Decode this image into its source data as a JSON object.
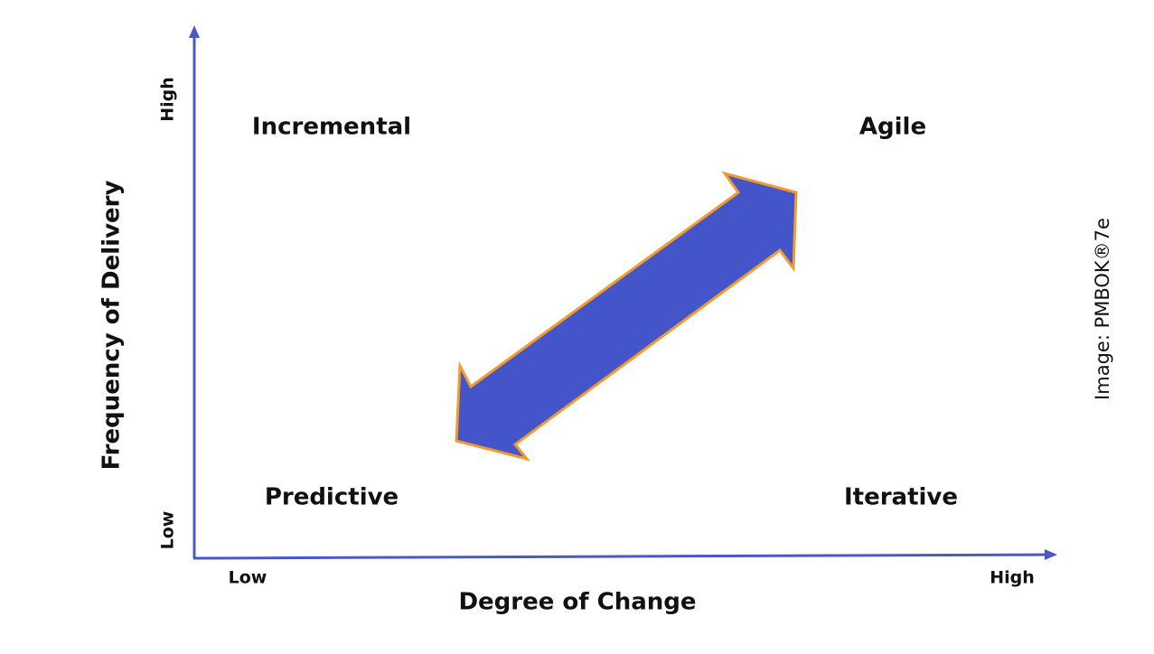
{
  "y_axis": {
    "title": "Frequency of Delivery",
    "low": "Low",
    "high": "High"
  },
  "x_axis": {
    "title": "Degree of Change",
    "low": "Low",
    "high": "High"
  },
  "quadrants": {
    "top_left": "Incremental",
    "top_right": "Agile",
    "bottom_left": "Predictive",
    "bottom_right": "Iterative"
  },
  "credit": "Image: PMBOK®7e"
}
